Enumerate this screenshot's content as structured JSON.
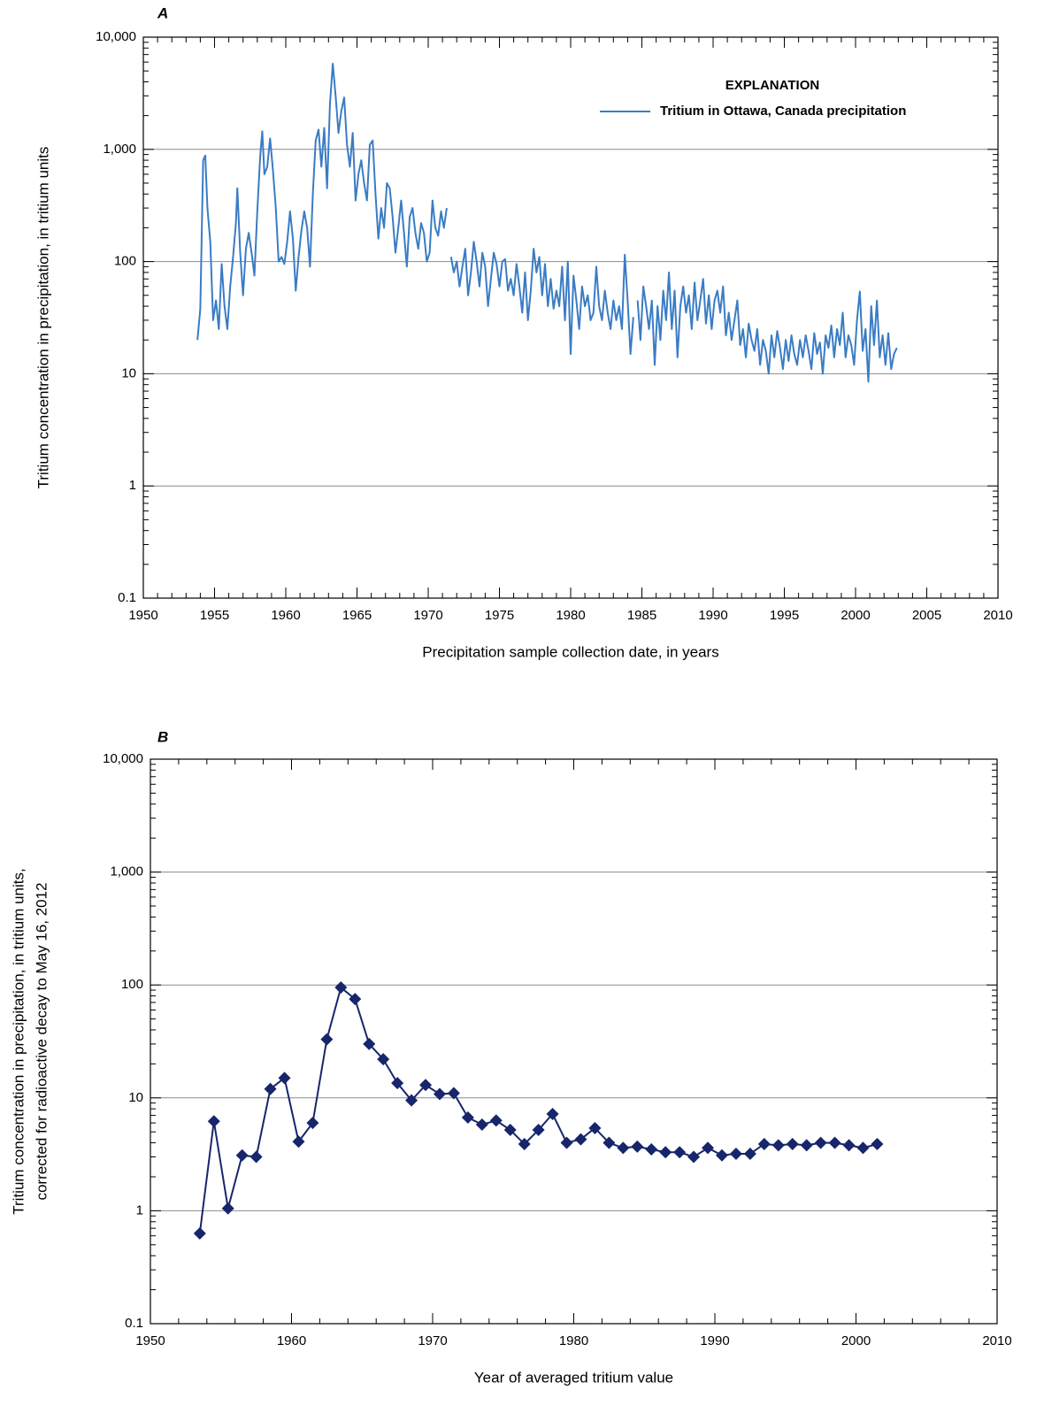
{
  "chart_data": [
    {
      "type": "line",
      "panel": "A",
      "xlabel": "Precipitation sample collection date, in years",
      "ylabel": "Tritium concentration in precipitation, in tritium units",
      "legend_title": "EXPLANATION",
      "legend": "upper right",
      "xlim": [
        1950,
        2010
      ],
      "xticks": [
        1950,
        1955,
        1960,
        1965,
        1970,
        1975,
        1980,
        1985,
        1990,
        1995,
        2000,
        2005,
        2010
      ],
      "ylim": [
        0.1,
        10000
      ],
      "log_y": true,
      "grid": true,
      "yticks": [
        0.1,
        1,
        10,
        100,
        {
          "value": 1000,
          "label": "1,000"
        },
        {
          "value": 10000,
          "label": "10,000"
        }
      ],
      "x": [
        1953.8,
        1954.0,
        1954.2,
        1954.35,
        1954.5,
        1954.7,
        1954.9,
        1955.1,
        1955.3,
        1955.5,
        1955.7,
        1955.9,
        1956.1,
        1956.3,
        1956.5,
        1956.6,
        1956.8,
        1957.0,
        1957.2,
        1957.4,
        1957.6,
        1957.8,
        1958.0,
        1958.2,
        1958.35,
        1958.5,
        1958.7,
        1958.9,
        1959.1,
        1959.3,
        1959.5,
        1959.7,
        1959.9,
        1960.1,
        1960.3,
        1960.5,
        1960.7,
        1960.9,
        1961.1,
        1961.3,
        1961.5,
        1961.7,
        1961.9,
        1962.1,
        1962.3,
        1962.5,
        1962.7,
        1962.9,
        1963.1,
        1963.3,
        1963.5,
        1963.7,
        1963.9,
        1964.1,
        1964.3,
        1964.5,
        1964.7,
        1964.9,
        1965.1,
        1965.3,
        1965.5,
        1965.7,
        1965.9,
        1966.1,
        1966.3,
        1966.5,
        1966.7,
        1966.9,
        1967.1,
        1967.3,
        1967.5,
        1967.7,
        1967.9,
        1968.1,
        1968.3,
        1968.5,
        1968.7,
        1968.9,
        1969.1,
        1969.3,
        1969.5,
        1969.7,
        1969.9,
        1970.1,
        1970.3,
        1970.5,
        1970.7,
        1970.9,
        1971.1,
        1971.3,
        1971.5,
        1971.6,
        1971.8,
        1972.0,
        1972.2,
        1972.4,
        1972.6,
        1972.8,
        1973.0,
        1973.2,
        1973.4,
        1973.6,
        1973.8,
        1974.0,
        1974.2,
        1974.4,
        1974.6,
        1974.8,
        1975.0,
        1975.2,
        1975.4,
        1975.6,
        1975.8,
        1976.0,
        1976.2,
        1976.4,
        1976.6,
        1976.8,
        1977.0,
        1977.2,
        1977.4,
        1977.6,
        1977.8,
        1978.0,
        1978.2,
        1978.4,
        1978.6,
        1978.8,
        1979.0,
        1979.2,
        1979.4,
        1979.6,
        1979.8,
        1980.0,
        1980.2,
        1980.4,
        1980.6,
        1980.8,
        1981.0,
        1981.2,
        1981.4,
        1981.6,
        1981.8,
        1982.0,
        1982.2,
        1982.4,
        1982.6,
        1982.8,
        1983.0,
        1983.2,
        1983.4,
        1983.6,
        1983.8,
        1984.0,
        1984.2,
        1984.4,
        1984.5,
        1984.7,
        1984.9,
        1985.1,
        1985.3,
        1985.5,
        1985.7,
        1985.9,
        1986.1,
        1986.3,
        1986.5,
        1986.7,
        1986.9,
        1987.1,
        1987.3,
        1987.5,
        1987.7,
        1987.9,
        1988.1,
        1988.3,
        1988.5,
        1988.7,
        1988.9,
        1989.1,
        1989.3,
        1989.5,
        1989.7,
        1989.9,
        1990.1,
        1990.3,
        1990.5,
        1990.7,
        1990.9,
        1991.1,
        1991.3,
        1991.5,
        1991.7,
        1991.9,
        1992.1,
        1992.3,
        1992.5,
        1992.7,
        1992.9,
        1993.1,
        1993.3,
        1993.5,
        1993.7,
        1993.9,
        1994.1,
        1994.3,
        1994.5,
        1994.7,
        1994.9,
        1995.1,
        1995.3,
        1995.5,
        1995.7,
        1995.9,
        1996.1,
        1996.3,
        1996.5,
        1996.7,
        1996.9,
        1997.1,
        1997.3,
        1997.5,
        1997.7,
        1997.9,
        1998.1,
        1998.3,
        1998.5,
        1998.7,
        1998.9,
        1999.1,
        1999.3,
        1999.5,
        1999.7,
        1999.9,
        2000.1,
        2000.3,
        2000.5,
        2000.7,
        2000.9,
        2001.1,
        2001.3,
        2001.5,
        2001.7,
        2001.9,
        2002.1,
        2002.3,
        2002.5,
        2002.7,
        2002.9
      ],
      "series": [
        {
          "name": "Tritium in Ottawa, Canada precipitation",
          "color": "#3a7cc4",
          "values": [
            20,
            38,
            800,
            880,
            300,
            150,
            30,
            45,
            25,
            95,
            40,
            25,
            60,
            110,
            220,
            450,
            120,
            50,
            130,
            180,
            120,
            75,
            280,
            850,
            1450,
            600,
            700,
            1250,
            650,
            300,
            100,
            110,
            95,
            150,
            280,
            160,
            55,
            110,
            190,
            280,
            200,
            90,
            400,
            1200,
            1500,
            700,
            1550,
            450,
            2500,
            5800,
            3000,
            1400,
            2200,
            2900,
            1100,
            700,
            1400,
            350,
            600,
            800,
            500,
            350,
            1100,
            1200,
            400,
            160,
            300,
            200,
            500,
            450,
            250,
            120,
            200,
            350,
            180,
            90,
            250,
            300,
            180,
            130,
            220,
            180,
            100,
            120,
            350,
            200,
            170,
            280,
            200,
            300,
            null,
            110,
            80,
            100,
            60,
            90,
            130,
            50,
            80,
            150,
            100,
            60,
            120,
            90,
            40,
            70,
            120,
            95,
            60,
            100,
            105,
            55,
            70,
            50,
            95,
            60,
            35,
            80,
            30,
            55,
            130,
            80,
            110,
            50,
            95,
            40,
            70,
            38,
            55,
            40,
            90,
            30,
            100,
            15,
            75,
            45,
            25,
            60,
            40,
            50,
            30,
            35,
            90,
            40,
            30,
            55,
            35,
            25,
            45,
            30,
            40,
            25,
            115,
            45,
            15,
            32,
            null,
            45,
            20,
            60,
            40,
            25,
            45,
            12,
            40,
            20,
            55,
            30,
            80,
            25,
            55,
            14,
            40,
            60,
            35,
            50,
            25,
            65,
            30,
            45,
            70,
            28,
            50,
            25,
            45,
            55,
            35,
            60,
            22,
            35,
            20,
            30,
            45,
            18,
            25,
            14,
            28,
            20,
            16,
            25,
            12,
            20,
            16,
            10,
            22,
            14,
            24,
            17,
            11,
            20,
            13,
            22,
            15,
            12,
            20,
            14,
            22,
            16,
            11,
            23,
            15,
            19,
            10,
            22,
            17,
            27,
            14,
            25,
            18,
            35,
            14,
            22,
            18,
            12,
            30,
            54,
            16,
            25,
            8.5,
            40,
            18,
            45,
            14,
            22,
            12,
            23,
            11,
            15,
            17
          ]
        }
      ]
    },
    {
      "type": "line",
      "panel": "B",
      "xlabel": "Year of averaged tritium value",
      "ylabel": [
        "Tritium concentration in precipitation, in tritium units,",
        "corrected for radioactive decay to May 16, 2012"
      ],
      "xlim": [
        1950,
        2010
      ],
      "xticks": [
        1950,
        1960,
        1970,
        1980,
        1990,
        2000,
        2010
      ],
      "ylim": [
        0.1,
        10000
      ],
      "log_y": true,
      "grid": true,
      "yticks": [
        0.1,
        1,
        10,
        100,
        {
          "value": 1000,
          "label": "1,000"
        },
        {
          "value": 10000,
          "label": "10,000"
        }
      ],
      "marker": "diamond",
      "x": [
        1953.5,
        1954.5,
        1955.5,
        1956.5,
        1957.5,
        1958.5,
        1959.5,
        1960.5,
        1961.5,
        1962.5,
        1963.5,
        1964.5,
        1965.5,
        1966.5,
        1967.5,
        1968.5,
        1969.5,
        1970.5,
        1971.5,
        1972.5,
        1973.5,
        1974.5,
        1975.5,
        1976.5,
        1977.5,
        1978.5,
        1979.5,
        1980.5,
        1981.5,
        1982.5,
        1983.5,
        1984.5,
        1985.5,
        1986.5,
        1987.5,
        1988.5,
        1989.5,
        1990.5,
        1991.5,
        1992.5,
        1993.5,
        1994.5,
        1995.5,
        1996.5,
        1997.5,
        1998.5,
        1999.5,
        2000.5,
        2001.5
      ],
      "series": [
        {
          "color": "#17256b",
          "values": [
            0.63,
            6.2,
            1.05,
            3.1,
            3.0,
            12,
            15,
            4.1,
            6.0,
            33,
            95,
            75,
            30,
            22,
            13.5,
            9.5,
            13,
            10.8,
            11,
            6.7,
            5.8,
            6.3,
            5.2,
            3.9,
            5.2,
            7.2,
            4.0,
            4.3,
            5.4,
            4.0,
            3.6,
            3.7,
            3.5,
            3.3,
            3.3,
            3.0,
            3.6,
            3.1,
            3.2,
            3.2,
            3.9,
            3.8,
            3.9,
            3.8,
            4.0,
            4.0,
            3.8,
            3.6,
            3.9
          ]
        }
      ]
    }
  ]
}
